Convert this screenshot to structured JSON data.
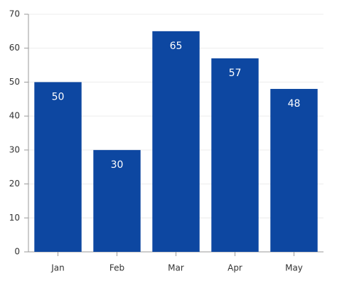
{
  "chart_data": {
    "type": "bar",
    "categories": [
      "Jan",
      "Feb",
      "Mar",
      "Apr",
      "May"
    ],
    "values": [
      50,
      30,
      65,
      57,
      48
    ],
    "color": "#0d47a1",
    "ylim": [
      0,
      70
    ],
    "yticks": [
      0,
      10,
      20,
      30,
      40,
      50,
      60,
      70
    ],
    "grid": true
  }
}
